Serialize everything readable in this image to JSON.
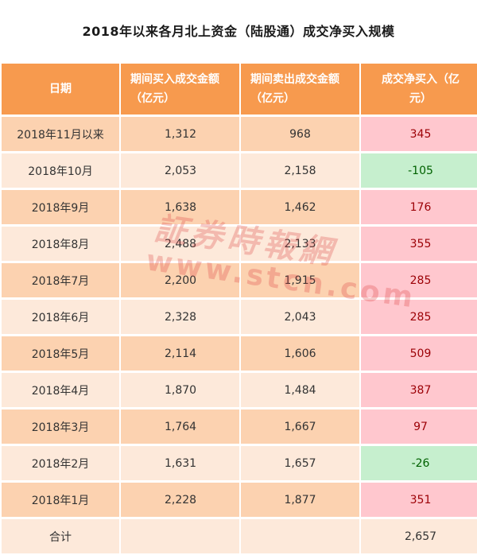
{
  "title": "2018年以来各月北上资金（陆股通）成交净买入规模",
  "headers": {
    "date": "日期",
    "buy_line1": "期间买入成交金额",
    "buy_line2": "（亿元）",
    "sell_line1": "期间卖出成交金额",
    "sell_line2": "（亿元）",
    "net_line1": "成交净买入（亿",
    "net_line2": "元）"
  },
  "rows": [
    {
      "date": "2018年11月以来",
      "buy": "1,312",
      "sell": "968",
      "net": "345",
      "net_sign": "pos"
    },
    {
      "date": "2018年10月",
      "buy": "2,053",
      "sell": "2,158",
      "net": "-105",
      "net_sign": "neg"
    },
    {
      "date": "2018年9月",
      "buy": "1,638",
      "sell": "1,462",
      "net": "176",
      "net_sign": "pos"
    },
    {
      "date": "2018年8月",
      "buy": "2,488",
      "sell": "2,133",
      "net": "355",
      "net_sign": "pos"
    },
    {
      "date": "2018年7月",
      "buy": "2,200",
      "sell": "1,915",
      "net": "285",
      "net_sign": "pos"
    },
    {
      "date": "2018年6月",
      "buy": "2,328",
      "sell": "2,043",
      "net": "285",
      "net_sign": "pos"
    },
    {
      "date": "2018年5月",
      "buy": "2,114",
      "sell": "1,606",
      "net": "509",
      "net_sign": "pos"
    },
    {
      "date": "2018年4月",
      "buy": "1,870",
      "sell": "1,484",
      "net": "387",
      "net_sign": "pos"
    },
    {
      "date": "2018年3月",
      "buy": "1,764",
      "sell": "1,667",
      "net": "97",
      "net_sign": "pos"
    },
    {
      "date": "2018年2月",
      "buy": "1,631",
      "sell": "1,657",
      "net": "-26",
      "net_sign": "neg"
    },
    {
      "date": "2018年1月",
      "buy": "2,228",
      "sell": "1,877",
      "net": "351",
      "net_sign": "pos"
    }
  ],
  "total": {
    "label": "合计",
    "buy": "",
    "sell": "",
    "net": "2,657"
  },
  "watermark": {
    "cn": "証券時報網",
    "en": "www.stcn.com"
  },
  "colors": {
    "header_bg": "#f79a4e",
    "row_odd": "#fcd2b0",
    "row_even": "#fde9da",
    "positive_bg": "#ffc7ce",
    "positive_text": "#9c0006",
    "negative_bg": "#c6efce",
    "negative_text": "#006100"
  }
}
